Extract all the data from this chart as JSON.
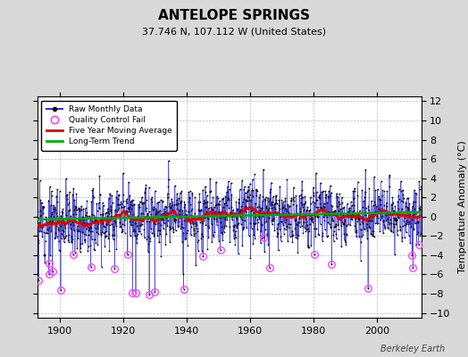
{
  "title": "ANTELOPE SPRINGS",
  "subtitle": "37.746 N, 107.112 W (United States)",
  "ylabel": "Temperature Anomaly (°C)",
  "credit": "Berkeley Earth",
  "xlim": [
    1893,
    2014
  ],
  "ylim": [
    -10.5,
    12.5
  ],
  "yticks": [
    -10,
    -8,
    -6,
    -4,
    -2,
    0,
    2,
    4,
    6,
    8,
    10,
    12
  ],
  "xticks": [
    1900,
    1920,
    1940,
    1960,
    1980,
    2000
  ],
  "bg_color": "#d8d8d8",
  "plot_bg_color": "#ffffff",
  "raw_color": "#3333cc",
  "raw_dot_color": "#000000",
  "ma_color": "#dd0000",
  "trend_color": "#00aa00",
  "qc_color": "#ff44ff",
  "grid_color": "#bbbbbb",
  "seed": 12,
  "years_start": 1893,
  "years_end": 2013,
  "title_fontsize": 11,
  "subtitle_fontsize": 8,
  "tick_fontsize": 8,
  "ylabel_fontsize": 8
}
